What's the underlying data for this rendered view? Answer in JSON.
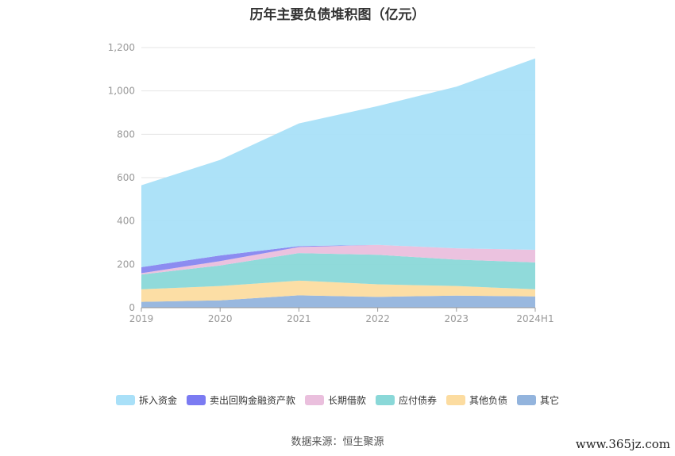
{
  "source_text": "数据来源：恒生聚源",
  "watermark": "www.365jz.com",
  "chart_data": {
    "type": "area",
    "stacked": true,
    "title": "历年主要负债堆积图（亿元）",
    "x": [
      "2019",
      "2020",
      "2021",
      "2022",
      "2023",
      "2024H1"
    ],
    "ylim": [
      0,
      1200
    ],
    "yticks": [
      0,
      200,
      400,
      600,
      800,
      1000,
      1200
    ],
    "ytick_labels": [
      "0",
      "200",
      "400",
      "600",
      "800",
      "1,000",
      "1,200"
    ],
    "grid": true,
    "legend_position": "bottom",
    "series": [
      {
        "name": "其它",
        "values": [
          27,
          34,
          57,
          50,
          56,
          52
        ],
        "color": "#93b4dd"
      },
      {
        "name": "其他负债",
        "values": [
          58,
          66,
          68,
          58,
          44,
          33
        ],
        "color": "#fcdca0"
      },
      {
        "name": "应付债券",
        "values": [
          68,
          95,
          127,
          136,
          122,
          124
        ],
        "color": "#8ad8d8"
      },
      {
        "name": "长期借款",
        "values": [
          6,
          20,
          28,
          46,
          52,
          58
        ],
        "color": "#eabfdd"
      },
      {
        "name": "卖出回购金融资产款",
        "values": [
          28,
          26,
          4,
          0,
          0,
          0
        ],
        "color": "#8686f0"
      },
      {
        "name": "拆入资金",
        "values": [
          378,
          441,
          566,
          640,
          746,
          883
        ],
        "color": "#a9e0f8"
      }
    ]
  }
}
